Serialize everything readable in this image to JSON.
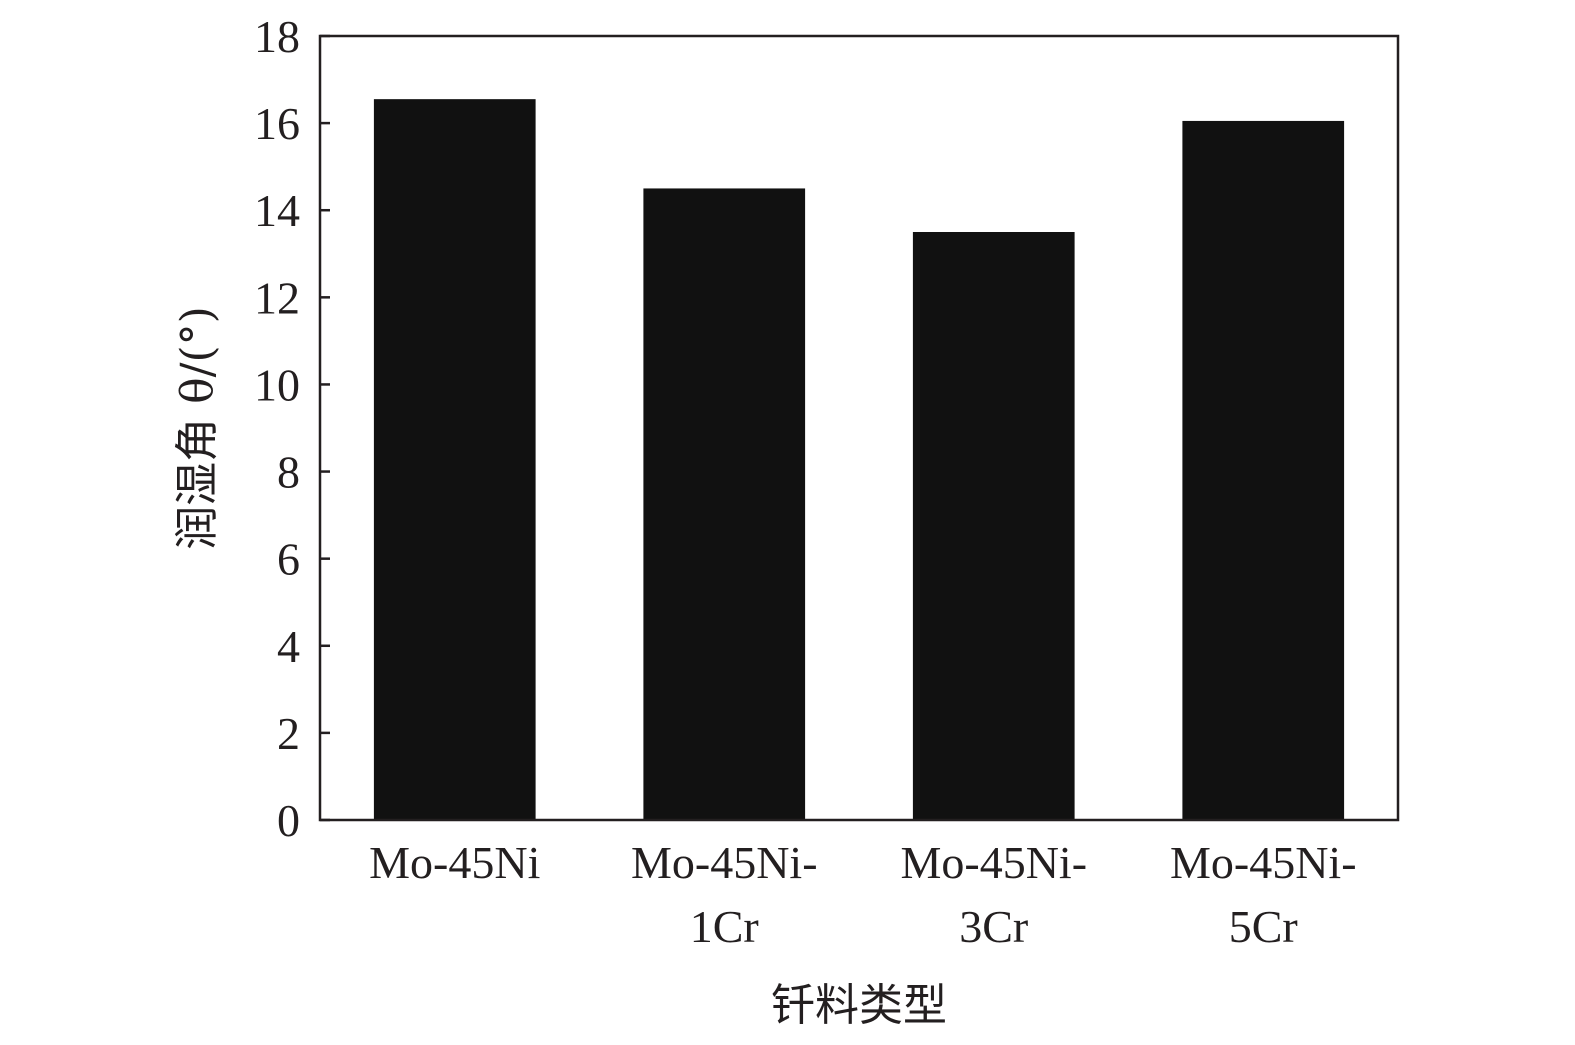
{
  "chart_data": {
    "type": "bar",
    "categories": [
      [
        "Mo-45Ni"
      ],
      [
        "Mo-45Ni-",
        "1Cr"
      ],
      [
        "Mo-45Ni-",
        "3Cr"
      ],
      [
        "Mo-45Ni-",
        "5Cr"
      ]
    ],
    "values": [
      16.55,
      14.5,
      13.5,
      16.05
    ],
    "xlabel": "钎料类型",
    "ylabel": "润湿角 θ/(°)",
    "ylim": [
      0,
      18
    ],
    "yticks": [
      0,
      2,
      4,
      6,
      8,
      10,
      12,
      14,
      16,
      18
    ],
    "grid": false,
    "legend": "none",
    "bar_color": "#111111"
  }
}
